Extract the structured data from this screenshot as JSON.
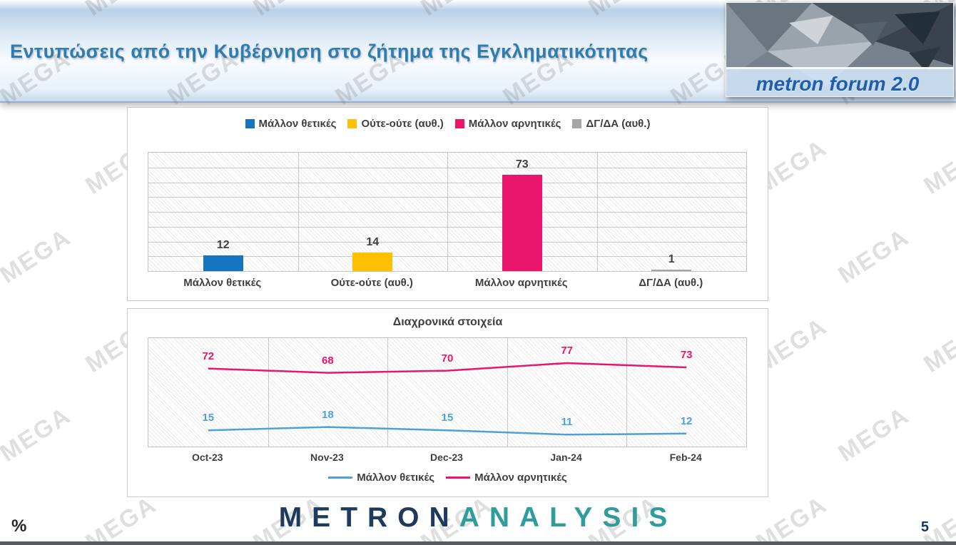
{
  "watermark": {
    "text": "MEGA"
  },
  "header": {
    "title": "Εντυπώσεις από την Κυβέρνηση στο ζήτημα της Εγκληματικότητας",
    "logo_text": "metron forum 2.0"
  },
  "footer": {
    "brand_primary": "METRON",
    "brand_secondary": "ANALYSIS",
    "percent_label": "%",
    "page_number": "5"
  },
  "colors": {
    "title_blue": "#2F7CB0",
    "positive_blue": "#1574BF",
    "neutral_yellow": "#FFC000",
    "negative_pink": "#EA156C",
    "dkda_gray": "#A5A5A5",
    "line_blue": "#4FA0D8",
    "brand_navy": "#1E3A5F",
    "brand_teal": "#2F9E9A"
  },
  "chart_data": [
    {
      "type": "bar",
      "title": "",
      "categories": [
        "Μάλλον θετικές",
        "Ούτε-ούτε (αυθ.)",
        "Μάλλον αρνητικές",
        "ΔΓ/ΔΑ (αυθ.)"
      ],
      "values": [
        12,
        14,
        73,
        1
      ],
      "colors": [
        "#1574BF",
        "#FFC000",
        "#EA156C",
        "#A5A5A5"
      ],
      "ylim": [
        0,
        90
      ],
      "grid": "horizontal",
      "legend_position": "top",
      "value_labels": true
    },
    {
      "type": "line",
      "title": "Διαχρονικά στοιχεία",
      "x": [
        "Oct-23",
        "Nov-23",
        "Dec-23",
        "Jan-24",
        "Feb-24"
      ],
      "series": [
        {
          "name": "Μάλλον θετικές",
          "color": "#4FA0D8",
          "values": [
            15,
            18,
            15,
            11,
            12
          ]
        },
        {
          "name": "Μάλλον αρνητικές",
          "color": "#EA156C",
          "values": [
            72,
            68,
            70,
            77,
            73
          ]
        }
      ],
      "ylim": [
        0,
        100
      ],
      "grid": "vertical",
      "legend_position": "bottom"
    }
  ]
}
